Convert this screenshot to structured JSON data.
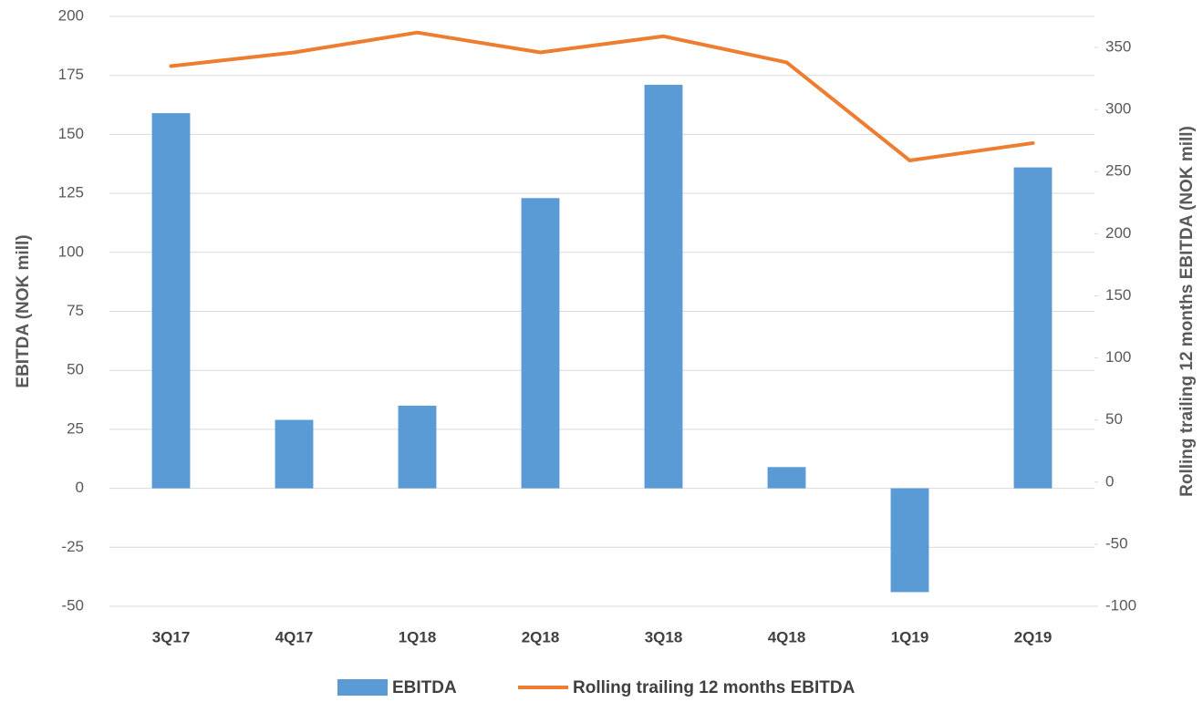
{
  "chart_data": {
    "type": "bar_line",
    "categories": [
      "3Q17",
      "4Q17",
      "1Q18",
      "2Q18",
      "3Q18",
      "4Q18",
      "1Q19",
      "2Q19"
    ],
    "series": [
      {
        "name": "EBITDA",
        "type": "bar",
        "color": "#5b9bd5",
        "values": [
          159,
          29,
          35,
          123,
          171,
          9,
          -44,
          136
        ]
      },
      {
        "name": "Rolling trailing 12 months EBITDA",
        "type": "line",
        "axis": "y2",
        "color": "#ed7d31",
        "values": [
          335,
          346,
          362,
          346,
          359,
          338,
          259,
          273
        ]
      }
    ],
    "ylabel": "EBITDA (NOK mill)",
    "y2label": "Rolling trailing 12 months EBITDA (NOK mill)",
    "ylim": [
      -50,
      200
    ],
    "yticks": [
      -50,
      -25,
      0,
      25,
      50,
      75,
      100,
      125,
      150,
      175,
      200
    ],
    "y2lim": [
      -100,
      375
    ],
    "y2ticks": [
      -100,
      -50,
      0,
      50,
      100,
      150,
      200,
      250,
      300,
      350
    ],
    "grid": true,
    "legend": "bottom"
  }
}
